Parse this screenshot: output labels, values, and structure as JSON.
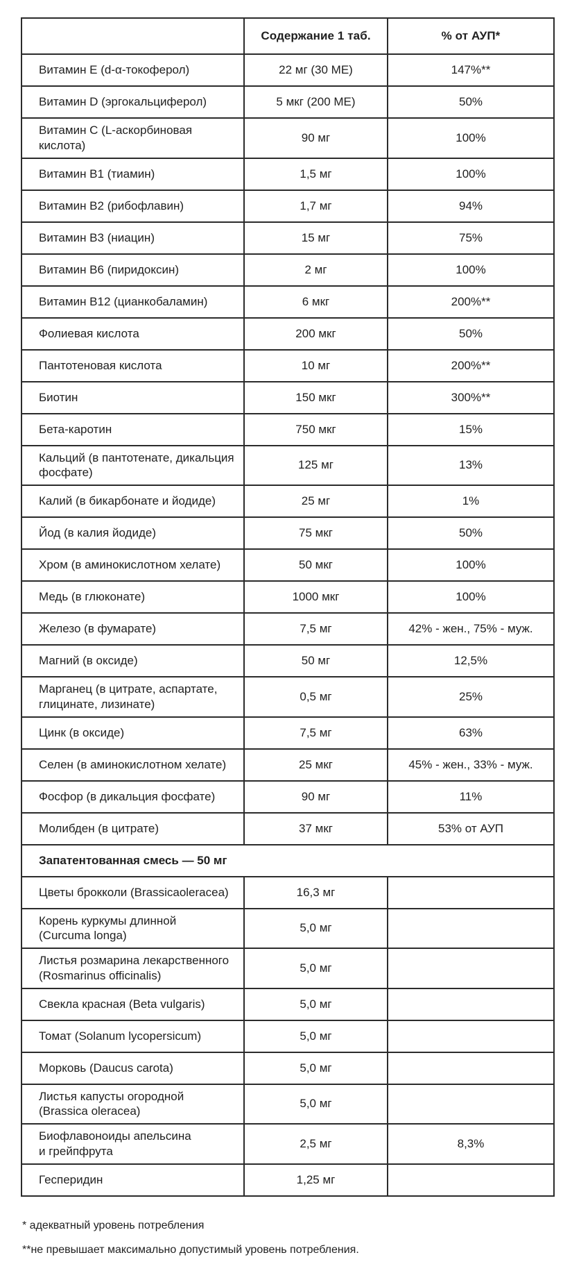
{
  "table": {
    "headers": [
      "",
      "Содержание 1 таб.",
      "% от АУП*"
    ],
    "rows": [
      {
        "name": "Витамин E (d-α-токоферол)",
        "amount": "22 мг (30 МЕ)",
        "percent": "147%**"
      },
      {
        "name": "Витамин D (эргокальциферол)",
        "amount": "5 мкг (200 МЕ)",
        "percent": "50%"
      },
      {
        "name": "Витамин C (L-аскорбиновая\nкислота)",
        "amount": "90 мг",
        "percent": "100%"
      },
      {
        "name": "Витамин B1 (тиамин)",
        "amount": "1,5 мг",
        "percent": "100%"
      },
      {
        "name": "Витамин B2 (рибофлавин)",
        "amount": "1,7 мг",
        "percent": "94%"
      },
      {
        "name": "Витамин B3 (ниацин)",
        "amount": "15 мг",
        "percent": "75%"
      },
      {
        "name": "Витамин B6 (пиридоксин)",
        "amount": "2 мг",
        "percent": "100%"
      },
      {
        "name": "Витамин B12 (цианкобаламин)",
        "amount": "6 мкг",
        "percent": "200%**"
      },
      {
        "name": "Фолиевая кислота",
        "amount": "200 мкг",
        "percent": "50%"
      },
      {
        "name": "Пантотеновая кислота",
        "amount": "10 мг",
        "percent": "200%**"
      },
      {
        "name": "Биотин",
        "amount": "150 мкг",
        "percent": "300%**"
      },
      {
        "name": "Бета-каротин",
        "amount": "750 мкг",
        "percent": "15%"
      },
      {
        "name": "Кальций (в пантотенате, дикальция\nфосфате)",
        "amount": "125 мг",
        "percent": "13%"
      },
      {
        "name": "Калий (в бикарбонате и йодиде)",
        "amount": "25 мг",
        "percent": "1%"
      },
      {
        "name": "Йод (в калия йодиде)",
        "amount": "75 мкг",
        "percent": "50%"
      },
      {
        "name": "Хром (в аминокислотном хелате)",
        "amount": "50 мкг",
        "percent": "100%"
      },
      {
        "name": "Медь (в глюконате)",
        "amount": "1000 мкг",
        "percent": "100%"
      },
      {
        "name": "Железо (в фумарате)",
        "amount": "7,5 мг",
        "percent": "42% - жен., 75% - муж."
      },
      {
        "name": "Магний (в оксиде)",
        "amount": "50 мг",
        "percent": "12,5%"
      },
      {
        "name": "Марганец (в цитрате, аспартате,\nглицинате, лизинате)",
        "amount": "0,5 мг",
        "percent": "25%"
      },
      {
        "name": "Цинк (в оксиде)",
        "amount": "7,5 мг",
        "percent": "63%"
      },
      {
        "name": "Селен (в аминокислотном хелате)",
        "amount": "25 мкг",
        "percent": "45% - жен., 33% - муж."
      },
      {
        "name": "Фосфор (в дикальция фосфате)",
        "amount": "90 мг",
        "percent": "11%"
      },
      {
        "name": "Молибден (в цитрате)",
        "amount": "37 мкг",
        "percent": "53% от АУП"
      }
    ],
    "section_header": "Запатентованная смесь — 50 мг",
    "blend_rows": [
      {
        "name": "Цветы брокколи (Brassicaoleracea)",
        "amount": "16,3 мг",
        "percent": ""
      },
      {
        "name": "Корень куркумы длинной\n(Curcuma longa)",
        "amount": "5,0 мг",
        "percent": ""
      },
      {
        "name": "Листья розмарина лекарственного\n(Rosmarinus officinalis)",
        "amount": "5,0 мг",
        "percent": ""
      },
      {
        "name": "Свекла красная (Beta vulgaris)",
        "amount": "5,0 мг",
        "percent": ""
      },
      {
        "name": "Томат (Solanum lycopersicum)",
        "amount": "5,0 мг",
        "percent": ""
      },
      {
        "name": "Морковь (Daucus carota)",
        "amount": "5,0 мг",
        "percent": ""
      },
      {
        "name": "Листья капусты огородной\n(Brassica oleracea)",
        "amount": "5,0 мг",
        "percent": ""
      },
      {
        "name": "Биофлавоноиды апельсина\nи грейпфрута",
        "amount": "2,5 мг",
        "percent": "8,3%"
      },
      {
        "name": "Гесперидин",
        "amount": "1,25 мг",
        "percent": ""
      }
    ]
  },
  "footnotes": [
    "* адекватный уровень потребления",
    "**не превышает максимально допустимый уровень потребления."
  ],
  "colors": {
    "border": "#2b2b2b",
    "text": "#1f1f1f",
    "background": "#ffffff"
  }
}
